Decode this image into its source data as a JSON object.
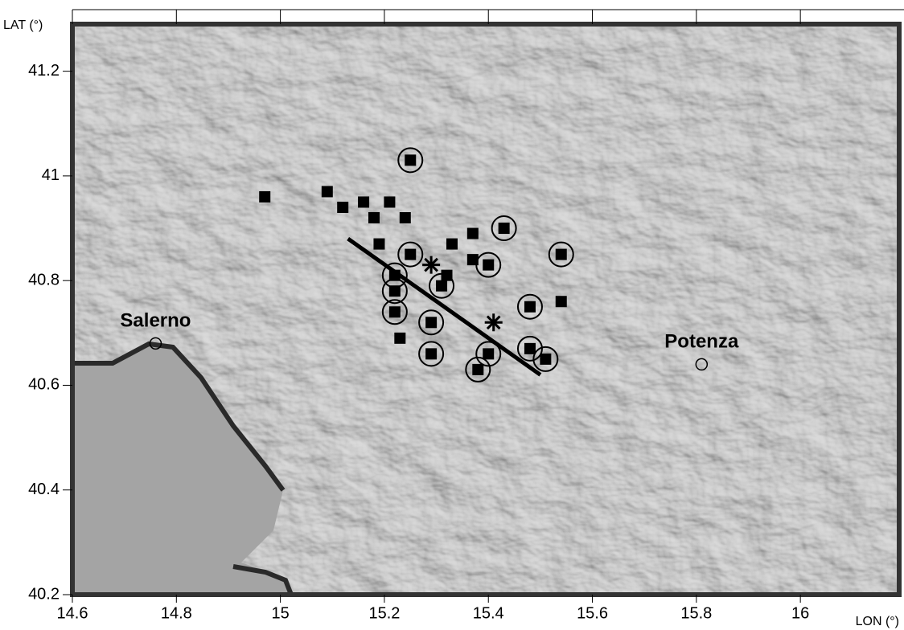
{
  "chart_data": {
    "type": "scatter",
    "xlabel": "LON (°)",
    "ylabel": "LAT (°)",
    "xlim": [
      14.6,
      16.19
    ],
    "ylim": [
      40.2,
      41.29
    ],
    "xticks": [
      14.6,
      14.8,
      15,
      15.2,
      15.4,
      15.6,
      15.8,
      16
    ],
    "yticks": [
      40.2,
      40.4,
      40.6,
      40.8,
      41,
      41.2
    ],
    "series": [
      {
        "marker": "square",
        "color": "#000000",
        "x": [
          14.97,
          15.09,
          15.12,
          15.16,
          15.18,
          15.21,
          15.24,
          15.19,
          15.33,
          15.37,
          15.37,
          15.32,
          15.54,
          15.23
        ],
        "y": [
          40.96,
          40.97,
          40.94,
          40.95,
          40.92,
          40.95,
          40.92,
          40.87,
          40.87,
          40.89,
          40.84,
          40.81,
          40.76,
          40.69
        ]
      },
      {
        "marker": "circled-square",
        "color": "#000000",
        "x": [
          15.25,
          15.43,
          15.25,
          15.4,
          15.54,
          15.22,
          15.22,
          15.31,
          15.22,
          15.29,
          15.48,
          15.29,
          15.4,
          15.38,
          15.48,
          15.51
        ],
        "y": [
          41.03,
          40.9,
          40.85,
          40.83,
          40.85,
          40.81,
          40.78,
          40.79,
          40.74,
          40.72,
          40.75,
          40.66,
          40.66,
          40.63,
          40.67,
          40.65
        ]
      },
      {
        "marker": "star",
        "color": "#000000",
        "x": [
          15.29,
          15.41
        ],
        "y": [
          40.83,
          40.72
        ]
      },
      {
        "marker": "line",
        "color": "#000000",
        "x": [
          15.13,
          15.5
        ],
        "y": [
          40.88,
          40.62
        ]
      }
    ],
    "annotations": [
      {
        "text": "Salerno",
        "x": 14.76,
        "y": 40.68
      },
      {
        "text": "Potenza",
        "x": 15.81,
        "y": 40.64
      }
    ]
  }
}
